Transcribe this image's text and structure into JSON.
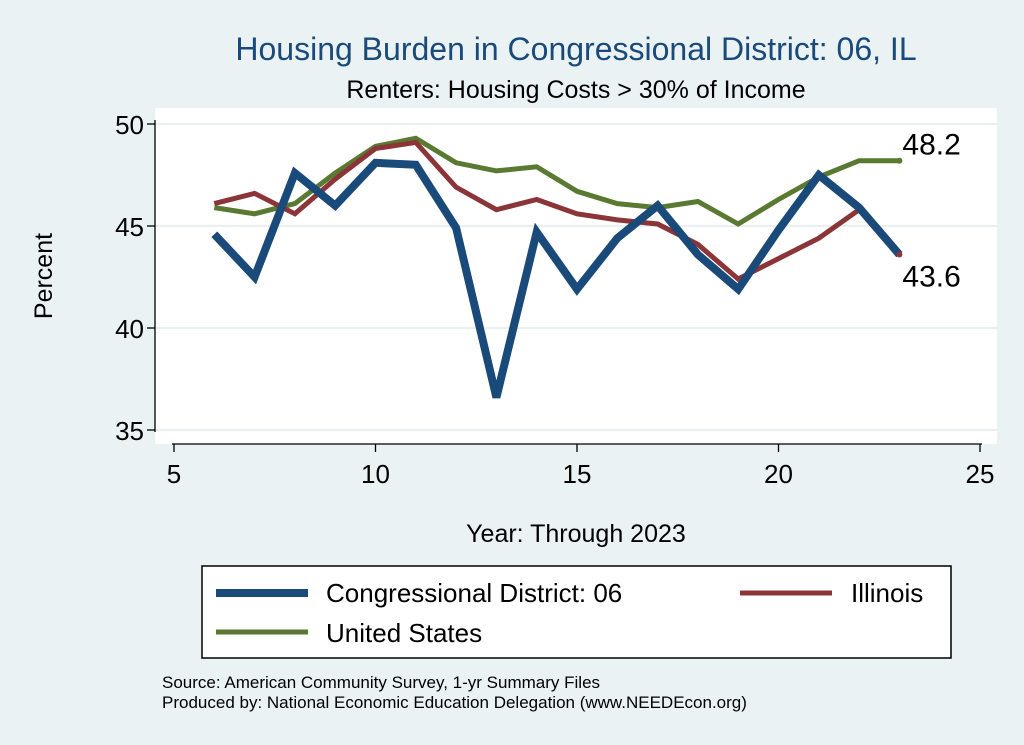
{
  "chart_data": {
    "type": "line",
    "title": "Housing Burden in Congressional District:  06, IL",
    "subtitle": "Renters: Housing Costs > 30% of Income",
    "xlabel": "Year: Through 2023",
    "ylabel": "Percent",
    "xlim": [
      5,
      25
    ],
    "ylim": [
      35,
      50
    ],
    "xticks": [
      5,
      10,
      15,
      20,
      25
    ],
    "yticks": [
      35,
      40,
      45,
      50
    ],
    "grid": true,
    "series": [
      {
        "name": "Congressional District:  06",
        "color": "#1a4a7a",
        "width": 8,
        "x": [
          6,
          7,
          8,
          9,
          10,
          11,
          12,
          13,
          14,
          15,
          16,
          17,
          18,
          19,
          20,
          21,
          22,
          23
        ],
        "values": [
          44.6,
          42.5,
          47.6,
          46.0,
          48.1,
          48.0,
          44.9,
          36.6,
          44.7,
          41.9,
          44.4,
          46.0,
          43.6,
          41.9,
          44.8,
          47.5,
          45.9,
          43.6
        ]
      },
      {
        "name": "Illinois",
        "color": "#8b3538",
        "width": 5,
        "x": [
          6,
          7,
          8,
          9,
          10,
          11,
          12,
          13,
          14,
          15,
          16,
          17,
          18,
          19,
          20,
          21,
          22,
          23
        ],
        "values": [
          46.1,
          46.6,
          45.6,
          47.3,
          48.8,
          49.1,
          46.9,
          45.8,
          46.3,
          45.6,
          45.3,
          45.1,
          44.1,
          42.4,
          43.4,
          44.4,
          45.8,
          43.6
        ]
      },
      {
        "name": "United States",
        "color": "#5a7a32",
        "width": 5,
        "x": [
          6,
          7,
          8,
          9,
          10,
          11,
          12,
          13,
          14,
          15,
          16,
          17,
          18,
          19,
          20,
          21,
          22,
          23
        ],
        "values": [
          45.9,
          45.6,
          46.1,
          47.6,
          48.9,
          49.3,
          48.1,
          47.7,
          47.9,
          46.7,
          46.1,
          45.9,
          46.2,
          45.1,
          46.3,
          47.4,
          48.2,
          48.2
        ]
      }
    ],
    "annotations": [
      {
        "label": "48.2",
        "series": "United States",
        "x": 23,
        "y": 48.2
      },
      {
        "label": "43.6",
        "series": "Illinois",
        "x": 23,
        "y": 43.6
      }
    ],
    "legend": {
      "placement": "bottom",
      "entries": [
        "Congressional District:  06",
        "Illinois",
        "United States"
      ]
    },
    "source_lines": [
      "Source: American Community Survey, 1-yr Summary Files",
      "Produced by: National Economic Education Delegation (www.NEEDEcon.org)"
    ]
  }
}
